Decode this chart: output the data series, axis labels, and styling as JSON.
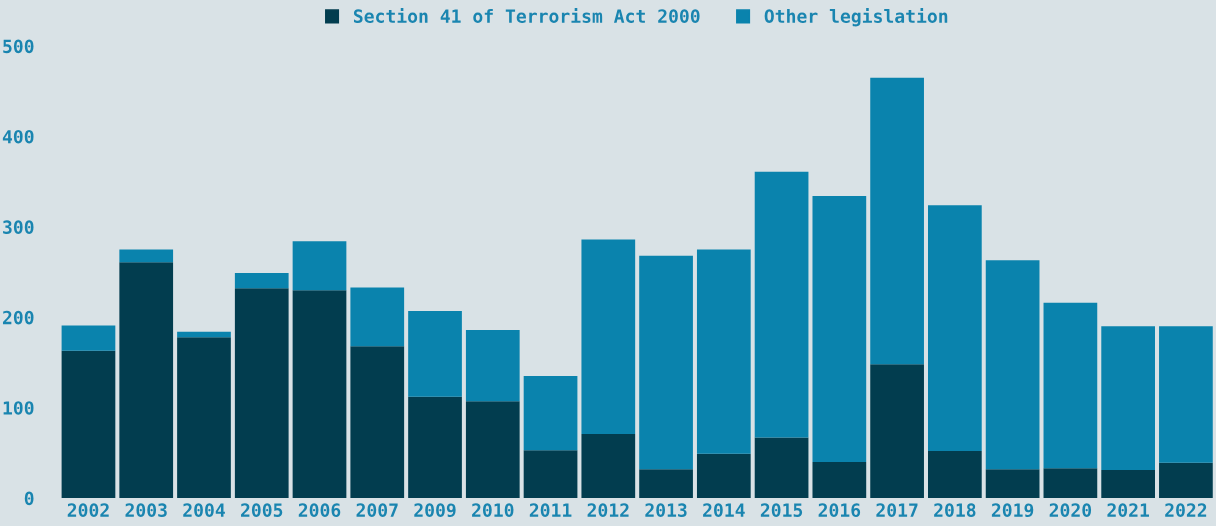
{
  "chart_data": {
    "type": "bar",
    "stacked": true,
    "categories": [
      "2002",
      "2003",
      "2004",
      "2005",
      "2006",
      "2007",
      "2009",
      "2010",
      "2011",
      "2012",
      "2013",
      "2014",
      "2015",
      "2016",
      "2017",
      "2018",
      "2019",
      "2020",
      "2021",
      "2022"
    ],
    "series": [
      {
        "name": "Section 41 of Terrorism Act 2000",
        "color": "#023d4f",
        "values": [
          163,
          261,
          178,
          232,
          230,
          168,
          112,
          107,
          53,
          71,
          32,
          49,
          67,
          40,
          148,
          52,
          32,
          33,
          31,
          39
        ]
      },
      {
        "name": "Other legislation",
        "color": "#0a83ad",
        "values": [
          28,
          14,
          6,
          17,
          54,
          65,
          95,
          79,
          82,
          215,
          236,
          226,
          294,
          294,
          317,
          272,
          231,
          183,
          159,
          151
        ]
      }
    ],
    "ylim": [
      0,
      500
    ],
    "yticks": [
      0,
      100,
      200,
      300,
      400,
      500
    ],
    "grid": false,
    "legend": "top"
  }
}
